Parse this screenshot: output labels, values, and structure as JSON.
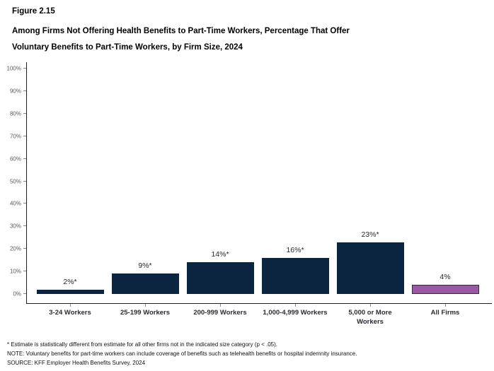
{
  "figure": {
    "label": "Figure 2.15",
    "title_line1": "Among Firms Not Offering Health Benefits to Part-Time Workers, Percentage That Offer",
    "title_line2": "Voluntary Benefits to Part-Time Workers, by Firm Size, 2024"
  },
  "chart_data": {
    "type": "bar",
    "title": "Among Firms Not Offering Health Benefits to Part-Time Workers, Percentage That Offer Voluntary Benefits to Part-Time Workers, by Firm Size, 2024",
    "categories": [
      "3-24 Workers",
      "25-199 Workers",
      "200-999 Workers",
      "1,000-4,999 Workers",
      "5,000 or More Workers",
      "All Firms"
    ],
    "values": [
      2,
      9,
      14,
      16,
      23,
      4
    ],
    "data_labels": [
      "2%*",
      "9%*",
      "14%*",
      "16%*",
      "23%*",
      "4%"
    ],
    "xlabel": "",
    "ylabel": "",
    "ylim": [
      0,
      100
    ],
    "ytick_labels": [
      "0%",
      "10%",
      "20%",
      "30%",
      "40%",
      "50%",
      "60%",
      "70%",
      "80%",
      "90%",
      "100%"
    ],
    "grid": false,
    "legend": "none",
    "bar_color_default": "#0B2540",
    "bar_color_highlight": "#9B59A5",
    "bar_border_color": "#2F2F3A",
    "highlight_index": 5
  },
  "footnotes": [
    "* Estimate is statistically different from estimate for all other firms not in the indicated size category (p < .05).",
    "NOTE: Voluntary benefits for part-time workers can include coverage of benefits such as telehealth benefits or hospital indemnity insurance.",
    "SOURCE: KFF Employer Health Benefits Survey, 2024"
  ]
}
